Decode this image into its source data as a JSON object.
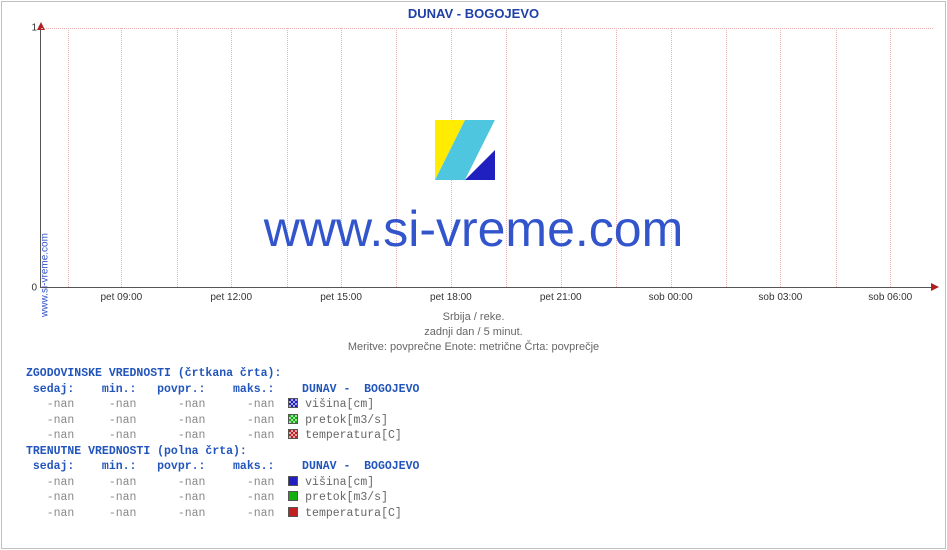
{
  "chart": {
    "title_main": "DUNAV -  BOGOJEVO",
    "side_label": "www.si-vreme.com",
    "watermark": "www.si-vreme.com",
    "type": "line",
    "y": {
      "lim": [
        0,
        1
      ],
      "ticks": [
        0,
        1
      ]
    },
    "x": {
      "ticks": [
        "pet 09:00",
        "pet 12:00",
        "pet 15:00",
        "pet 18:00",
        "pet 21:00",
        "sob 00:00",
        "sob 03:00",
        "sob 06:00"
      ],
      "pct": [
        9,
        21.3,
        33.6,
        45.9,
        58.2,
        70.5,
        82.8,
        95.1
      ]
    },
    "grid": {
      "v_pct": [
        3,
        9,
        15.2,
        21.3,
        27.5,
        33.6,
        39.8,
        45.9,
        52.1,
        58.2,
        64.4,
        70.5,
        76.7,
        82.8,
        89,
        95.1
      ],
      "h_pct": [
        0,
        100
      ],
      "color": "#e8b0b0"
    },
    "caption": {
      "l1": "Srbija / reke.",
      "l2": "zadnji dan / 5 minut.",
      "l3": "Meritve: povprečne  Enote: metrične  Črta: povprečje"
    },
    "colors": {
      "title": "#2255bb",
      "axis": "#555555",
      "text": "#666666",
      "blue": "#2020c0",
      "green": "#10b010",
      "red": "#c02020",
      "link": "#3355cc",
      "bg": "#ffffff"
    },
    "logo": {
      "yellow": "#ffec00",
      "cyan": "#4fc6e0",
      "blue": "#2020c0"
    }
  },
  "legend": {
    "hist_title": "ZGODOVINSKE VREDNOSTI (črtkana črta):",
    "curr_title": "TRENUTNE VREDNOSTI (polna črta):",
    "cols": {
      "c1": " sedaj:",
      "c2": "   min.:",
      "c3": "  povpr.:",
      "c4": "   maks.:",
      "site": "   DUNAV -  BOGOJEVO"
    },
    "series": [
      {
        "label": " višina[cm]",
        "color": "blue"
      },
      {
        "label": " pretok[m3/s]",
        "color": "green"
      },
      {
        "label": " temperatura[C]",
        "color": "red"
      }
    ],
    "val": "-nan"
  }
}
